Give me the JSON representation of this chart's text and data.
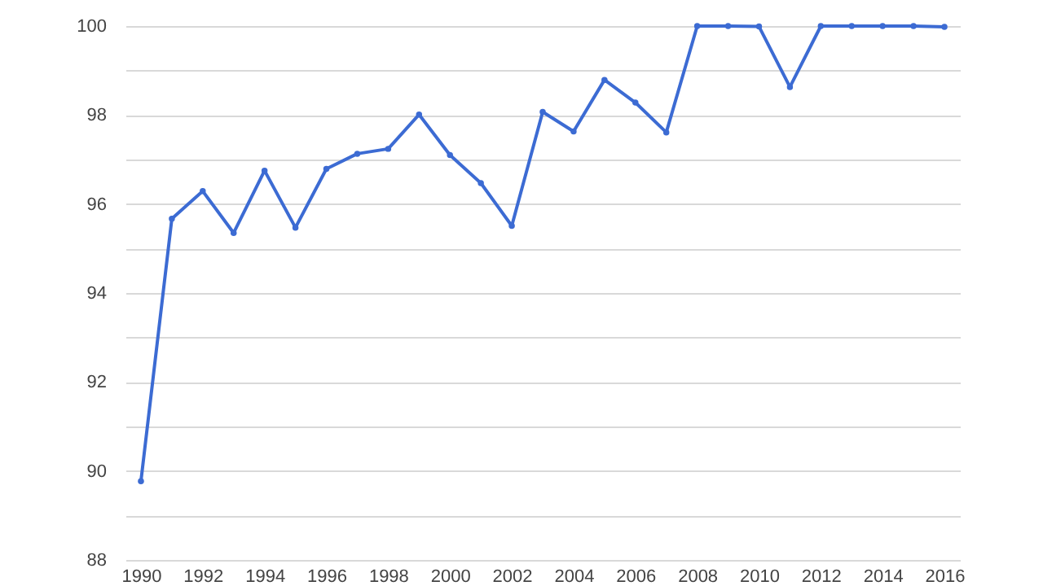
{
  "chart_data": {
    "type": "line",
    "x": [
      1990,
      1991,
      1992,
      1993,
      1994,
      1995,
      1996,
      1997,
      1998,
      1999,
      2000,
      2001,
      2002,
      2003,
      2004,
      2005,
      2006,
      2007,
      2008,
      2009,
      2010,
      2011,
      2012,
      2013,
      2014,
      2015,
      2016
    ],
    "series": [
      {
        "color": "#3c6bd3",
        "values": [
          89.77,
          95.67,
          96.29,
          95.35,
          96.75,
          95.47,
          96.79,
          97.13,
          97.24,
          98.01,
          97.1,
          96.47,
          95.51,
          98.07,
          97.63,
          98.79,
          98.28,
          97.61,
          100,
          100,
          99.99,
          98.63,
          100,
          100,
          100,
          100,
          99.98
        ]
      }
    ],
    "xlim": [
      1989.5,
      2016.5
    ],
    "xticks": [
      1990,
      1992,
      1994,
      1996,
      1998,
      2000,
      2002,
      2004,
      2006,
      2008,
      2010,
      2012,
      2014,
      2016
    ],
    "ylim": [
      88,
      100
    ],
    "yticks": [
      88,
      {
        "value": 89,
        "label": null
      },
      90,
      {
        "value": 91,
        "label": null
      },
      92,
      {
        "value": 93,
        "label": null
      },
      94,
      {
        "value": 95,
        "label": null
      },
      96,
      {
        "value": 97,
        "label": null
      },
      98,
      {
        "value": 99,
        "label": null
      },
      100
    ],
    "grid": "y",
    "marker": "circle",
    "line_style": "solid"
  }
}
